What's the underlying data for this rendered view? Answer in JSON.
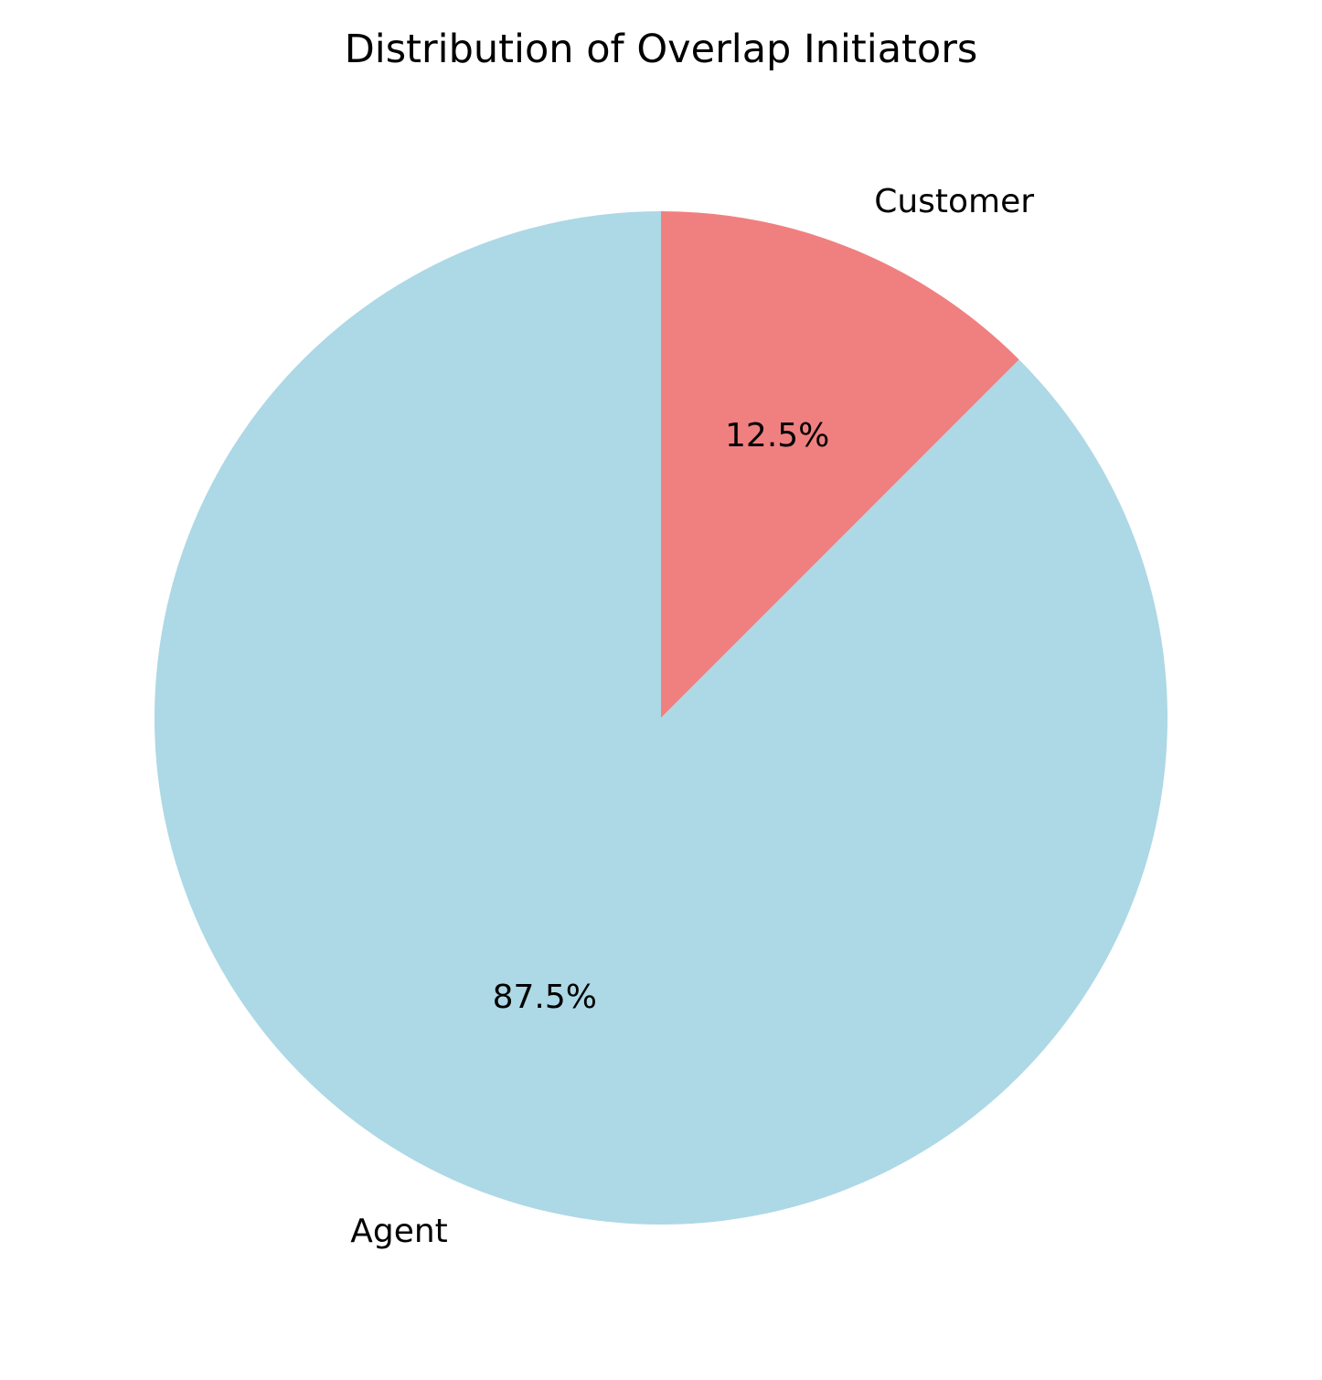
{
  "chart_data": {
    "type": "pie",
    "title": "Distribution of Overlap Initiators",
    "categories": [
      "Customer",
      "Agent"
    ],
    "values": [
      12.5,
      87.5
    ],
    "percent_labels": [
      "12.5%",
      "87.5%"
    ],
    "colors": [
      "#f08080",
      "#add8e6"
    ],
    "start_angle_deg": 90,
    "direction": "clockwise",
    "legend": "none"
  }
}
